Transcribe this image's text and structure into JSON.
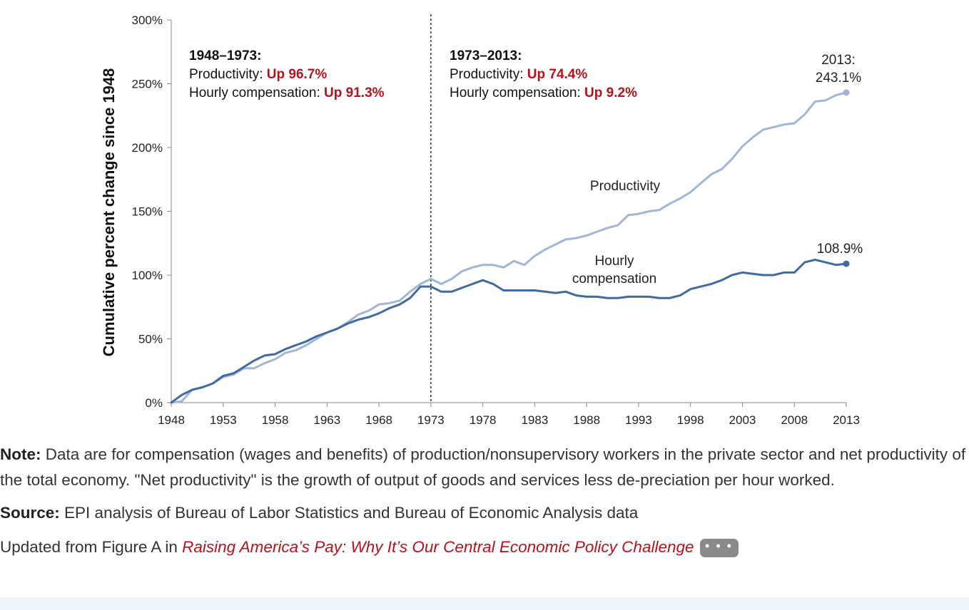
{
  "chart_data": {
    "type": "line",
    "ylabel": "Cumulative percent change since 1948",
    "xlabel": "",
    "ylim": [
      0,
      300
    ],
    "xlim": [
      1948,
      2013
    ],
    "x_ticks": [
      "1948",
      "1953",
      "1958",
      "1963",
      "1968",
      "1973",
      "1978",
      "1983",
      "1988",
      "1993",
      "1998",
      "2003",
      "2008",
      "2013"
    ],
    "y_ticks": [
      "0%",
      "50%",
      "100%",
      "150%",
      "200%",
      "250%",
      "300%"
    ],
    "divider_year": 1973,
    "x": [
      1948,
      1949,
      1950,
      1951,
      1952,
      1953,
      1954,
      1955,
      1956,
      1957,
      1958,
      1959,
      1960,
      1961,
      1962,
      1963,
      1964,
      1965,
      1966,
      1967,
      1968,
      1969,
      1970,
      1971,
      1972,
      1973,
      1974,
      1975,
      1976,
      1977,
      1978,
      1979,
      1980,
      1981,
      1982,
      1983,
      1984,
      1985,
      1986,
      1987,
      1988,
      1989,
      1990,
      1991,
      1992,
      1993,
      1994,
      1995,
      1996,
      1997,
      1998,
      1999,
      2000,
      2001,
      2002,
      2003,
      2004,
      2005,
      2006,
      2007,
      2008,
      2009,
      2010,
      2011,
      2012,
      2013
    ],
    "series": [
      {
        "name": "Productivity",
        "color": "#9fb6d8",
        "values": [
          0,
          1,
          10,
          12,
          15,
          20,
          22,
          27,
          27,
          31,
          34,
          39,
          41,
          45,
          50,
          55,
          58,
          63,
          69,
          72,
          77,
          78,
          80,
          87,
          93,
          97,
          93,
          97,
          103,
          106,
          108,
          108,
          106,
          111,
          108,
          115,
          120,
          124,
          128,
          129,
          131,
          134,
          137,
          139,
          147,
          148,
          150,
          151,
          156,
          160,
          165,
          172,
          179,
          183,
          191,
          201,
          208,
          214,
          216,
          218,
          219,
          226,
          236,
          237,
          241,
          243.1
        ]
      },
      {
        "name": "Hourly compensation",
        "color": "#3f6aa3",
        "values": [
          0,
          6,
          10,
          12,
          15,
          21,
          23,
          28,
          33,
          37,
          38,
          42,
          45,
          48,
          52,
          55,
          58,
          62,
          65,
          67,
          70,
          74,
          77,
          82,
          91,
          91,
          87,
          87,
          90,
          93,
          96,
          93,
          88,
          88,
          88,
          88,
          87,
          86,
          87,
          84,
          83,
          83,
          82,
          82,
          83,
          83,
          83,
          82,
          82,
          84,
          89,
          91,
          93,
          96,
          100,
          102,
          101,
          100,
          100,
          102,
          102,
          110,
          112,
          110,
          108,
          108.9
        ]
      }
    ],
    "labels": {
      "productivity": "Productivity",
      "comp_line1": "Hourly",
      "comp_line2": "compensation",
      "end_prod_1": "2013:",
      "end_prod_2": "243.1%",
      "end_comp": "108.9%"
    },
    "annotations": [
      {
        "period": "1948–1973:",
        "prod_label": "Productivity: ",
        "prod_value": "Up 96.7%",
        "comp_label": "Hourly compensation: ",
        "comp_value": "Up 91.3%"
      },
      {
        "period": "1973–2013:",
        "prod_label": "Productivity: ",
        "prod_value": "Up 74.4%",
        "comp_label": "Hourly compensation: ",
        "comp_value": "Up 9.2%"
      }
    ]
  },
  "notes": {
    "note_label": "Note:",
    "note_text": " Data are for compensation (wages and benefits) of production/nonsupervisory workers in the private sector and net productivity of the total economy. \"Net productivity\" is the growth of output of goods and services less de-preciation per hour worked.",
    "source_label": "Source:",
    "source_text": " EPI analysis of Bureau of Labor Statistics and Bureau of Economic Analysis data",
    "updated_text": "Updated from Figure A in ",
    "updated_link": "Raising America’s Pay: Why It’s Our Central Economic Policy Challenge",
    "more_button": "• • •"
  }
}
